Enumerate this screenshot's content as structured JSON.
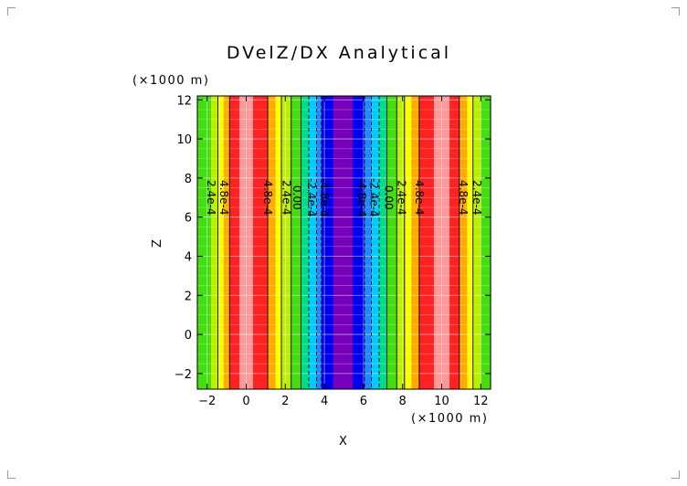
{
  "chart_data": {
    "type": "heatmap",
    "title": "DVelZ/DX Analytical",
    "xlabel": "X",
    "ylabel": "Z",
    "x_units": "(×1000 m)",
    "y_units": "(×1000 m)",
    "xlim": [
      -2.5,
      12.5
    ],
    "ylim": [
      -2.8,
      12.2
    ],
    "x_ticks": [
      -2,
      0,
      2,
      4,
      6,
      8,
      10,
      12
    ],
    "y_ticks": [
      -2,
      0,
      2,
      4,
      6,
      8,
      10,
      12
    ],
    "x_tick_labels": [
      "−2",
      "0",
      "2",
      "4",
      "6",
      "8",
      "10",
      "12"
    ],
    "y_tick_labels": [
      "−2",
      "0",
      "2",
      "4",
      "6",
      "8",
      "10",
      "12"
    ],
    "bands": [
      {
        "x0": -2.5,
        "x1": -1.8,
        "color": "#44dd11"
      },
      {
        "x0": -1.8,
        "x1": -1.45,
        "color": "#bbee00"
      },
      {
        "x0": -1.45,
        "x1": -1.15,
        "color": "#ffff00"
      },
      {
        "x0": -1.15,
        "x1": -0.85,
        "color": "#ffaa00"
      },
      {
        "x0": -0.85,
        "x1": -0.35,
        "color": "#ff2222"
      },
      {
        "x0": -0.35,
        "x1": 0.35,
        "color": "#ff9999"
      },
      {
        "x0": 0.35,
        "x1": 1.1,
        "color": "#ff2222"
      },
      {
        "x0": 1.1,
        "x1": 1.5,
        "color": "#ffaa00"
      },
      {
        "x0": 1.5,
        "x1": 1.8,
        "color": "#ffff00"
      },
      {
        "x0": 1.8,
        "x1": 2.3,
        "color": "#bbee00"
      },
      {
        "x0": 2.3,
        "x1": 2.8,
        "color": "#44dd11"
      },
      {
        "x0": 2.8,
        "x1": 3.2,
        "color": "#00dd88"
      },
      {
        "x0": 3.2,
        "x1": 3.6,
        "color": "#00ccff"
      },
      {
        "x0": 3.6,
        "x1": 3.85,
        "color": "#2288ff"
      },
      {
        "x0": 3.85,
        "x1": 4.45,
        "color": "#0000ee"
      },
      {
        "x0": 4.45,
        "x1": 5.45,
        "color": "#7700bb"
      },
      {
        "x0": 5.45,
        "x1": 6.05,
        "color": "#0000ee"
      },
      {
        "x0": 6.05,
        "x1": 6.4,
        "color": "#2288ff"
      },
      {
        "x0": 6.4,
        "x1": 6.8,
        "color": "#00ccff"
      },
      {
        "x0": 6.8,
        "x1": 7.2,
        "color": "#00dd88"
      },
      {
        "x0": 7.2,
        "x1": 7.7,
        "color": "#44dd11"
      },
      {
        "x0": 7.7,
        "x1": 8.1,
        "color": "#bbee00"
      },
      {
        "x0": 8.1,
        "x1": 8.45,
        "color": "#ffff00"
      },
      {
        "x0": 8.45,
        "x1": 8.85,
        "color": "#ffaa00"
      },
      {
        "x0": 8.85,
        "x1": 9.6,
        "color": "#ff2222"
      },
      {
        "x0": 9.6,
        "x1": 10.4,
        "color": "#ff9999"
      },
      {
        "x0": 10.4,
        "x1": 10.9,
        "color": "#ff2222"
      },
      {
        "x0": 10.9,
        "x1": 11.3,
        "color": "#ffaa00"
      },
      {
        "x0": 11.3,
        "x1": 11.6,
        "color": "#ffff00"
      },
      {
        "x0": 11.6,
        "x1": 12.0,
        "color": "#bbee00"
      },
      {
        "x0": 12.0,
        "x1": 12.5,
        "color": "#44dd11"
      }
    ],
    "contour_lines": [
      {
        "x": -1.45,
        "style": "solid"
      },
      {
        "x": -0.85,
        "style": "solid"
      },
      {
        "x": 1.1,
        "style": "solid"
      },
      {
        "x": 1.8,
        "style": "solid"
      },
      {
        "x": 2.3,
        "style": "solid"
      },
      {
        "x": 2.8,
        "style": "solid"
      },
      {
        "x": 3.2,
        "style": "dashed"
      },
      {
        "x": 3.6,
        "style": "dashed"
      },
      {
        "x": 3.85,
        "style": "dashed"
      },
      {
        "x": 6.05,
        "style": "dashed"
      },
      {
        "x": 6.4,
        "style": "dashed"
      },
      {
        "x": 6.8,
        "style": "dashed"
      },
      {
        "x": 7.2,
        "style": "solid"
      },
      {
        "x": 7.7,
        "style": "solid"
      },
      {
        "x": 8.1,
        "style": "solid"
      },
      {
        "x": 8.85,
        "style": "solid"
      },
      {
        "x": 10.9,
        "style": "solid"
      },
      {
        "x": 11.6,
        "style": "solid"
      }
    ],
    "contour_labels": [
      {
        "text": "2.4e-4",
        "x": -1.8,
        "y": 7.0
      },
      {
        "text": "4.8e-4",
        "x": -1.15,
        "y": 7.0
      },
      {
        "text": "4.8e-4",
        "x": 1.1,
        "y": 7.0
      },
      {
        "text": "2.4e-4",
        "x": 2.05,
        "y": 7.0
      },
      {
        "text": "0.00",
        "x": 2.6,
        "y": 7.0
      },
      {
        "text": "-2.4e-4",
        "x": 3.35,
        "y": 7.0
      },
      {
        "text": "-4.8e-4",
        "x": 4.0,
        "y": 7.0
      },
      {
        "text": "-4.8e-4",
        "x": 5.9,
        "y": 7.0
      },
      {
        "text": "-2.4e-4",
        "x": 6.55,
        "y": 7.0
      },
      {
        "text": "0.00",
        "x": 7.3,
        "y": 7.0
      },
      {
        "text": "2.4e-4",
        "x": 7.95,
        "y": 7.0
      },
      {
        "text": "4.8e-4",
        "x": 8.85,
        "y": 7.0
      },
      {
        "text": "4.8e-4",
        "x": 11.1,
        "y": 7.0
      },
      {
        "text": "2.4e-4",
        "x": 11.8,
        "y": 7.0
      }
    ],
    "grid": true,
    "legend": "none"
  }
}
